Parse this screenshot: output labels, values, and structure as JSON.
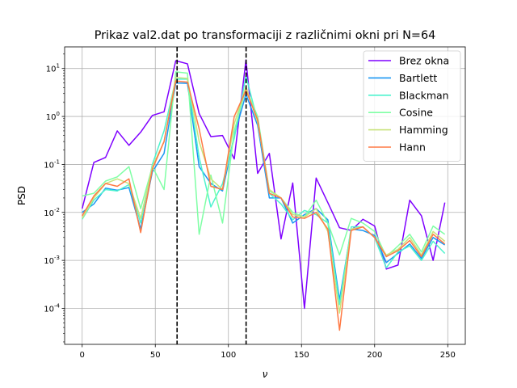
{
  "chart_data": {
    "type": "line",
    "title": "Prikaz val2.dat po transformaciji z različnimi okni pri N=64",
    "xlabel": "ν",
    "ylabel": "PSD",
    "xlim": [
      -12,
      262
    ],
    "ylim_log10": [
      -4.75,
      1.45
    ],
    "yscale": "log",
    "grid": true,
    "legend_position": "upper-right",
    "x_ticks": [
      0,
      50,
      100,
      150,
      200,
      250
    ],
    "x_tick_labels": [
      "0",
      "50",
      "100",
      "150",
      "200",
      "250"
    ],
    "y_ticks_log10": [
      -4,
      -3,
      -2,
      -1,
      0,
      1
    ],
    "y_tick_labels": [
      "10^-4",
      "10^-3",
      "10^-2",
      "10^-1",
      "10^0",
      "10^1"
    ],
    "vlines": [
      {
        "x": 64.9,
        "style": "dashed",
        "color": "#000000"
      },
      {
        "x": 112.1,
        "style": "dashed",
        "color": "#000000"
      }
    ],
    "x": [
      0,
      8,
      16,
      24,
      32,
      40,
      48,
      56,
      64,
      72,
      80,
      88,
      96,
      104,
      112,
      120,
      128,
      136,
      144,
      152,
      160,
      168,
      176,
      184,
      192,
      200,
      208,
      216,
      224,
      232,
      240,
      248
    ],
    "series": [
      {
        "name": "Brez okna",
        "color": "#7f00ff",
        "values": [
          0.012,
          0.11,
          0.14,
          0.5,
          0.25,
          0.47,
          1.05,
          1.25,
          14.5,
          12.5,
          1.15,
          0.38,
          0.4,
          0.13,
          15.0,
          0.065,
          0.17,
          0.0028,
          0.041,
          0.0001,
          0.052,
          0.016,
          0.0048,
          0.0042,
          0.0072,
          0.0052,
          0.00066,
          0.0008,
          0.018,
          0.0085,
          0.001,
          0.016
        ]
      },
      {
        "name": "Bartlett",
        "color": "#1996f3",
        "values": [
          0.01,
          0.015,
          0.032,
          0.029,
          0.033,
          0.0045,
          0.07,
          0.17,
          5.0,
          4.9,
          0.09,
          0.04,
          0.028,
          0.4,
          2.9,
          0.65,
          0.02,
          0.02,
          0.006,
          0.009,
          0.012,
          0.007,
          0.00015,
          0.0045,
          0.0042,
          0.0033,
          0.0009,
          0.0014,
          0.0022,
          0.0011,
          0.003,
          0.0021
        ]
      },
      {
        "name": "Blackman",
        "color": "#4df3ce",
        "values": [
          0.0072,
          0.018,
          0.03,
          0.028,
          0.038,
          0.006,
          0.1,
          0.5,
          6.0,
          6.0,
          0.14,
          0.013,
          0.04,
          0.35,
          7.0,
          0.8,
          0.025,
          0.015,
          0.007,
          0.011,
          0.009,
          0.006,
          0.00012,
          0.005,
          0.005,
          0.003,
          0.0007,
          0.0015,
          0.002,
          0.001,
          0.0025,
          0.0014
        ]
      },
      {
        "name": "Cosine",
        "color": "#7fffa5",
        "values": [
          0.022,
          0.025,
          0.045,
          0.055,
          0.09,
          0.012,
          0.09,
          0.03,
          8.5,
          8.0,
          0.0035,
          0.06,
          0.006,
          0.5,
          3.8,
          1.0,
          0.028,
          0.02,
          0.01,
          0.008,
          0.018,
          0.006,
          0.0013,
          0.0075,
          0.006,
          0.004,
          0.0012,
          0.002,
          0.0035,
          0.0015,
          0.0052,
          0.0035
        ]
      },
      {
        "name": "Hamming",
        "color": "#c9e37c",
        "values": [
          0.0075,
          0.02,
          0.04,
          0.05,
          0.04,
          0.0075,
          0.09,
          0.3,
          6.5,
          6.2,
          0.3,
          0.05,
          0.03,
          0.7,
          4.2,
          0.75,
          0.03,
          0.02,
          0.009,
          0.008,
          0.012,
          0.004,
          8e-05,
          0.0045,
          0.005,
          0.003,
          0.0013,
          0.0017,
          0.003,
          0.0013,
          0.004,
          0.0025
        ]
      },
      {
        "name": "Hann",
        "color": "#ff7a45",
        "values": [
          0.0085,
          0.022,
          0.04,
          0.035,
          0.05,
          0.0038,
          0.08,
          0.3,
          5.5,
          5.2,
          0.55,
          0.035,
          0.03,
          1.0,
          3.5,
          0.85,
          0.025,
          0.02,
          0.008,
          0.0075,
          0.01,
          0.0045,
          3.5e-05,
          0.0042,
          0.005,
          0.003,
          0.0012,
          0.0016,
          0.0026,
          0.0012,
          0.0035,
          0.0022
        ]
      }
    ]
  }
}
